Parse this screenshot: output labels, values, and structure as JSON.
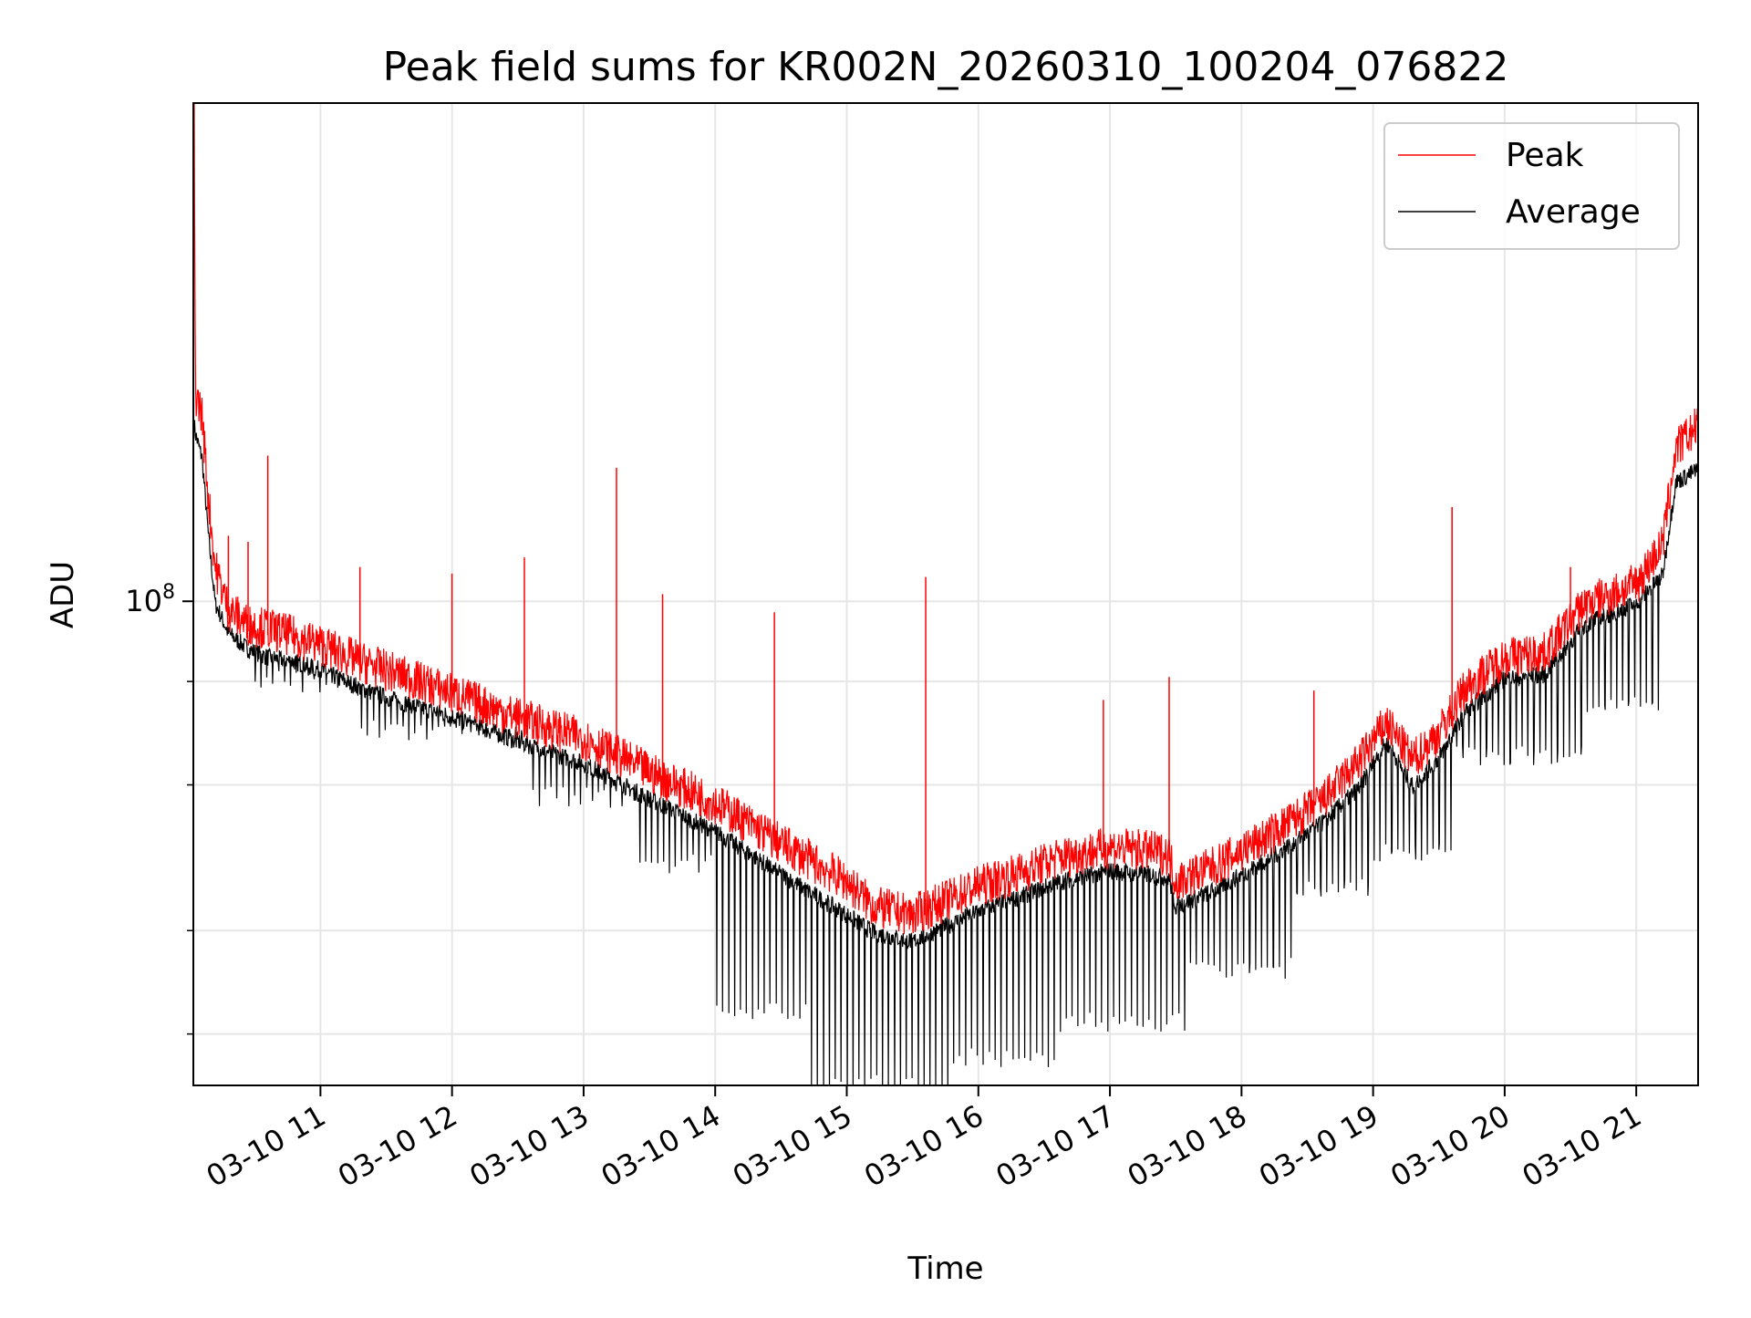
{
  "chart_data": {
    "type": "line",
    "title": "Peak field sums for KR002N_20260310_100204_076822",
    "xlabel": "Time",
    "ylabel": "ADU",
    "yscale": "log",
    "ylim": [
      26000000,
      400000000
    ],
    "xlim_hours": [
      10.034,
      21.47
    ],
    "x_tick_values_hours": [
      11,
      12,
      13,
      14,
      15,
      16,
      17,
      18,
      19,
      20,
      21
    ],
    "x_tick_labels": [
      "03-10 11",
      "03-10 12",
      "03-10 13",
      "03-10 14",
      "03-10 15",
      "03-10 16",
      "03-10 17",
      "03-10 18",
      "03-10 19",
      "03-10 20",
      "03-10 21"
    ],
    "y_major_tick_value": 100000000,
    "y_major_tick_mantissa": "10",
    "y_major_tick_exponent": "8",
    "y_minor_tick_values": [
      30000000,
      40000000,
      60000000,
      80000000
    ],
    "grid": true,
    "legend_position": "top-right",
    "series": [
      {
        "name": "Peak",
        "color": "#ff0000",
        "x_hours": [
          10.04,
          10.05,
          10.1,
          10.15,
          10.2,
          10.3,
          10.45,
          10.6,
          10.8,
          11.0,
          11.3,
          11.6,
          12.0,
          12.5,
          13.0,
          13.5,
          14.0,
          14.5,
          15.0,
          15.2,
          15.5,
          15.8,
          16.0,
          16.3,
          16.6,
          17.0,
          17.3,
          17.45,
          17.5,
          17.8,
          18.2,
          18.6,
          18.9,
          19.1,
          19.3,
          19.5,
          19.7,
          20.0,
          20.3,
          20.6,
          21.0,
          21.2,
          21.3,
          21.47
        ],
        "values": [
          400000000,
          175000000,
          165000000,
          130000000,
          108000000,
          96000000,
          92000000,
          91000000,
          89000000,
          87000000,
          83000000,
          80000000,
          76000000,
          71000000,
          67000000,
          61000000,
          56000000,
          50000000,
          45000000,
          42000000,
          41000000,
          43000000,
          44500000,
          46000000,
          48000000,
          49500000,
          49000000,
          48500000,
          45000000,
          47000000,
          51000000,
          56000000,
          63000000,
          70000000,
          63000000,
          68000000,
          77000000,
          84000000,
          85000000,
          97000000,
          103000000,
          115000000,
          150000000,
          160000000
        ],
        "spikes": [
          {
            "x_hours": 10.3,
            "value": 120000000
          },
          {
            "x_hours": 10.45,
            "value": 118000000
          },
          {
            "x_hours": 10.6,
            "value": 150000000
          },
          {
            "x_hours": 11.3,
            "value": 110000000
          },
          {
            "x_hours": 12.0,
            "value": 108000000
          },
          {
            "x_hours": 12.55,
            "value": 113000000
          },
          {
            "x_hours": 13.25,
            "value": 145000000
          },
          {
            "x_hours": 13.6,
            "value": 102000000
          },
          {
            "x_hours": 14.45,
            "value": 97000000
          },
          {
            "x_hours": 15.6,
            "value": 107000000
          },
          {
            "x_hours": 16.95,
            "value": 76000000
          },
          {
            "x_hours": 17.45,
            "value": 81000000
          },
          {
            "x_hours": 18.55,
            "value": 78000000
          },
          {
            "x_hours": 19.6,
            "value": 130000000
          },
          {
            "x_hours": 20.5,
            "value": 110000000
          }
        ]
      },
      {
        "name": "Average",
        "color": "#000000",
        "x_hours": [
          10.04,
          10.05,
          10.1,
          10.15,
          10.2,
          10.3,
          10.45,
          10.6,
          10.8,
          11.0,
          11.3,
          11.6,
          12.0,
          12.5,
          13.0,
          13.5,
          14.0,
          14.5,
          15.0,
          15.2,
          15.5,
          15.8,
          16.0,
          16.3,
          16.6,
          17.0,
          17.3,
          17.45,
          17.5,
          17.8,
          18.2,
          18.6,
          18.9,
          19.1,
          19.3,
          19.5,
          19.7,
          20.0,
          20.3,
          20.6,
          21.0,
          21.2,
          21.3,
          21.47
        ],
        "values": [
          165000000,
          160000000,
          150000000,
          120000000,
          100000000,
          92000000,
          88000000,
          86000000,
          85000000,
          83000000,
          79000000,
          76000000,
          73000000,
          68000000,
          64000000,
          58000000,
          53000000,
          47000000,
          42000000,
          40000000,
          39000000,
          41000000,
          42500000,
          44000000,
          46000000,
          47500000,
          47000000,
          46500000,
          43000000,
          45000000,
          49000000,
          54000000,
          60000000,
          68000000,
          60000000,
          65000000,
          74000000,
          81000000,
          82000000,
          94000000,
          100000000,
          108000000,
          140000000,
          145000000
        ],
        "dips": [
          {
            "x_start_hours": 10.5,
            "x_end_hours": 11.3,
            "value": 80000000
          },
          {
            "x_start_hours": 11.3,
            "x_end_hours": 12.6,
            "value": 70000000
          },
          {
            "x_start_hours": 12.6,
            "x_end_hours": 13.4,
            "value": 58000000
          },
          {
            "x_start_hours": 13.4,
            "x_end_hours": 14.0,
            "value": 48000000
          },
          {
            "x_start_hours": 14.0,
            "x_end_hours": 14.7,
            "value": 32000000
          },
          {
            "x_start_hours": 14.7,
            "x_end_hours": 15.8,
            "value": 26000000
          },
          {
            "x_start_hours": 15.8,
            "x_end_hours": 16.6,
            "value": 28000000
          },
          {
            "x_start_hours": 16.6,
            "x_end_hours": 17.6,
            "value": 31000000
          },
          {
            "x_start_hours": 17.6,
            "x_end_hours": 18.4,
            "value": 36000000
          },
          {
            "x_start_hours": 18.4,
            "x_end_hours": 19.0,
            "value": 45000000
          },
          {
            "x_start_hours": 19.0,
            "x_end_hours": 19.6,
            "value": 50000000
          },
          {
            "x_start_hours": 19.6,
            "x_end_hours": 20.6,
            "value": 65000000
          },
          {
            "x_start_hours": 20.6,
            "x_end_hours": 21.2,
            "value": 75000000
          }
        ]
      }
    ]
  }
}
